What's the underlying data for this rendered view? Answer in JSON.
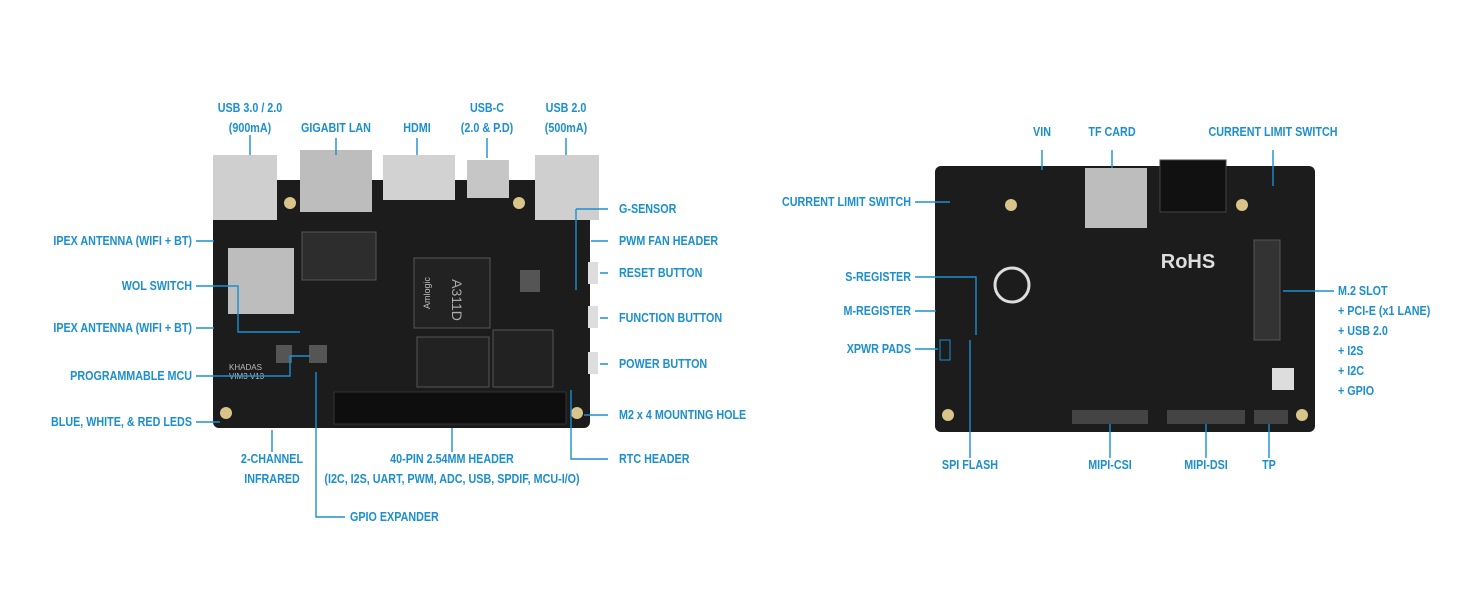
{
  "front": {
    "top": {
      "usb3": [
        "USB 3.0 / 2.0",
        "(900mA)"
      ],
      "lan": "GIGABIT LAN",
      "hdmi": "HDMI",
      "usbc": [
        "USB-C",
        "(2.0 & P.D)"
      ],
      "usb2": [
        "USB 2.0",
        "(500mA)"
      ]
    },
    "right": [
      "G-SENSOR",
      "PWM FAN HEADER",
      "RESET BUTTON",
      "FUNCTION BUTTON",
      "POWER BUTTON",
      "M2 x 4 MOUNTING HOLE",
      "RTC HEADER"
    ],
    "left": [
      "IPEX ANTENNA (WIFI + BT)",
      "WOL SWITCH",
      "IPEX ANTENNA (WIFI + BT)",
      "PROGRAMMABLE MCU",
      "BLUE, WHITE, & RED LEDS"
    ],
    "bottom": {
      "infrared": [
        "2-CHANNEL",
        "INFRARED"
      ],
      "header": [
        "40-PIN 2.54MM HEADER",
        "(I2C, I2S, UART, PWM, ADC, USB, SPDIF, MCU-I/O)"
      ],
      "gpio": "GPIO EXPANDER"
    },
    "board_text": {
      "soc": "A311D",
      "brand": "Amlogic",
      "logo": "KHADAS",
      "model": "VIM3 V13"
    }
  },
  "back": {
    "top": [
      "VIN",
      "TF CARD",
      "CURRENT LIMIT SWITCH"
    ],
    "left": [
      "CURRENT LIMIT SWITCH",
      "S-REGISTER",
      "M-REGISTER",
      "XPWR PADS"
    ],
    "right": [
      "M.2 SLOT",
      "+ PCI-E (x1 LANE)",
      "+ USB 2.0",
      "+ I2S",
      "+ I2C",
      "+ GPIO"
    ],
    "bottom": [
      "SPI FLASH",
      "MIPI-CSI",
      "MIPI-DSI",
      "TP"
    ],
    "board_text": {
      "rohs": "RoHS"
    }
  },
  "colors": {
    "label": "#1b8fd0",
    "pcb": "#1c1c1c",
    "metal": "#c9c9c9"
  }
}
